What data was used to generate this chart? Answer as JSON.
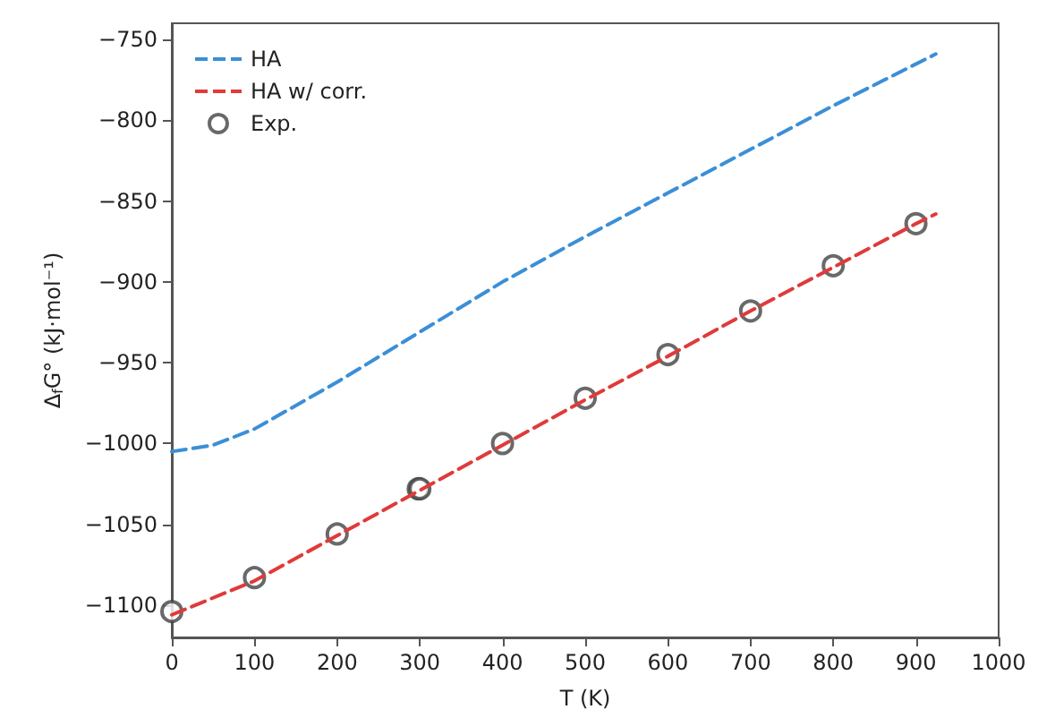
{
  "chart_data": {
    "type": "line",
    "xlabel": "T (K)",
    "ylabel": "Δ$_{f}$G° (kJ·mol⁻¹)",
    "xlim": [
      0,
      1000
    ],
    "xticks": [
      0,
      100,
      200,
      300,
      400,
      500,
      600,
      700,
      800,
      900,
      1000
    ],
    "ylim": [
      -1120,
      -740
    ],
    "yticks": [
      {
        "value": -1100,
        "label": "−1100"
      },
      {
        "value": -1050,
        "label": "−1050"
      },
      {
        "value": -1000,
        "label": "−1000"
      },
      {
        "value": -950,
        "label": "−950"
      },
      {
        "value": -900,
        "label": "−900"
      },
      {
        "value": -850,
        "label": "−850"
      },
      {
        "value": -800,
        "label": "−800"
      },
      {
        "value": -750,
        "label": "−750"
      }
    ],
    "legend": "top left",
    "grid": false,
    "line_style": "dashed",
    "series": [
      {
        "name": "HA",
        "color": "#3b8fd6",
        "x": [
          0,
          50,
          100,
          200,
          300,
          400,
          500,
          600,
          700,
          800,
          924
        ],
        "values": [
          -1005,
          -1001,
          -991,
          -962,
          -931,
          -900,
          -872,
          -845,
          -818,
          -791,
          -759
        ]
      },
      {
        "name": "HA w/ corr.",
        "color": "#e03a3a",
        "x": [
          0,
          100,
          200,
          300,
          400,
          500,
          600,
          700,
          800,
          900,
          924
        ],
        "values": [
          -1106,
          -1085,
          -1057,
          -1029,
          -1001,
          -973,
          -946,
          -918,
          -891,
          -864,
          -858
        ]
      },
      {
        "name": "Exp.",
        "type": "scatter",
        "marker": "circle",
        "color": "#444444",
        "x": [
          0,
          100,
          200,
          298,
          300,
          400,
          500,
          600,
          700,
          800,
          900
        ],
        "values": [
          -1104,
          -1083,
          -1056,
          -1028,
          -1028,
          -1000,
          -972,
          -945,
          -918,
          -890,
          -864
        ]
      }
    ]
  }
}
